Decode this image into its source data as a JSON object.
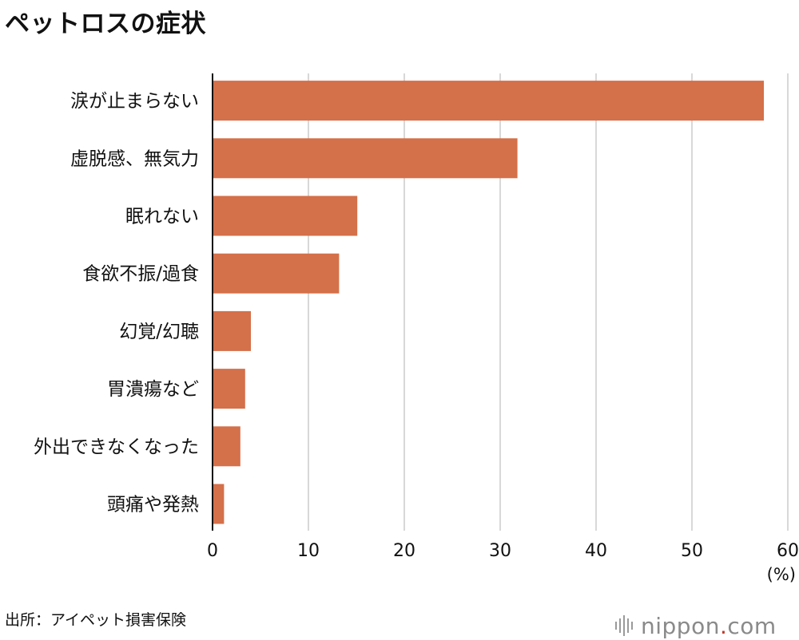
{
  "title": "ペットロスの症状",
  "source": "出所：アイペット損害保険",
  "logo": {
    "name": "nippon",
    "dot": ".",
    "suffix": "com"
  },
  "colors": {
    "bar": "#d4704a",
    "grid": "#cccccc",
    "axis": "#111111"
  },
  "chart_data": {
    "type": "bar",
    "orientation": "horizontal",
    "categories": [
      "涙が止まらない",
      "虚脱感、無気力",
      "眠れない",
      "食欲不振/過食",
      "幻覚/幻聴",
      "胃潰瘍など",
      "外出できなくなった",
      "頭痛や発熱"
    ],
    "values": [
      57.5,
      31.8,
      15.1,
      13.2,
      4.0,
      3.4,
      2.9,
      1.2
    ],
    "xlim": [
      0,
      60
    ],
    "xticks": [
      0,
      10,
      20,
      30,
      40,
      50,
      60
    ],
    "xunit": "(%)",
    "grid": true
  }
}
